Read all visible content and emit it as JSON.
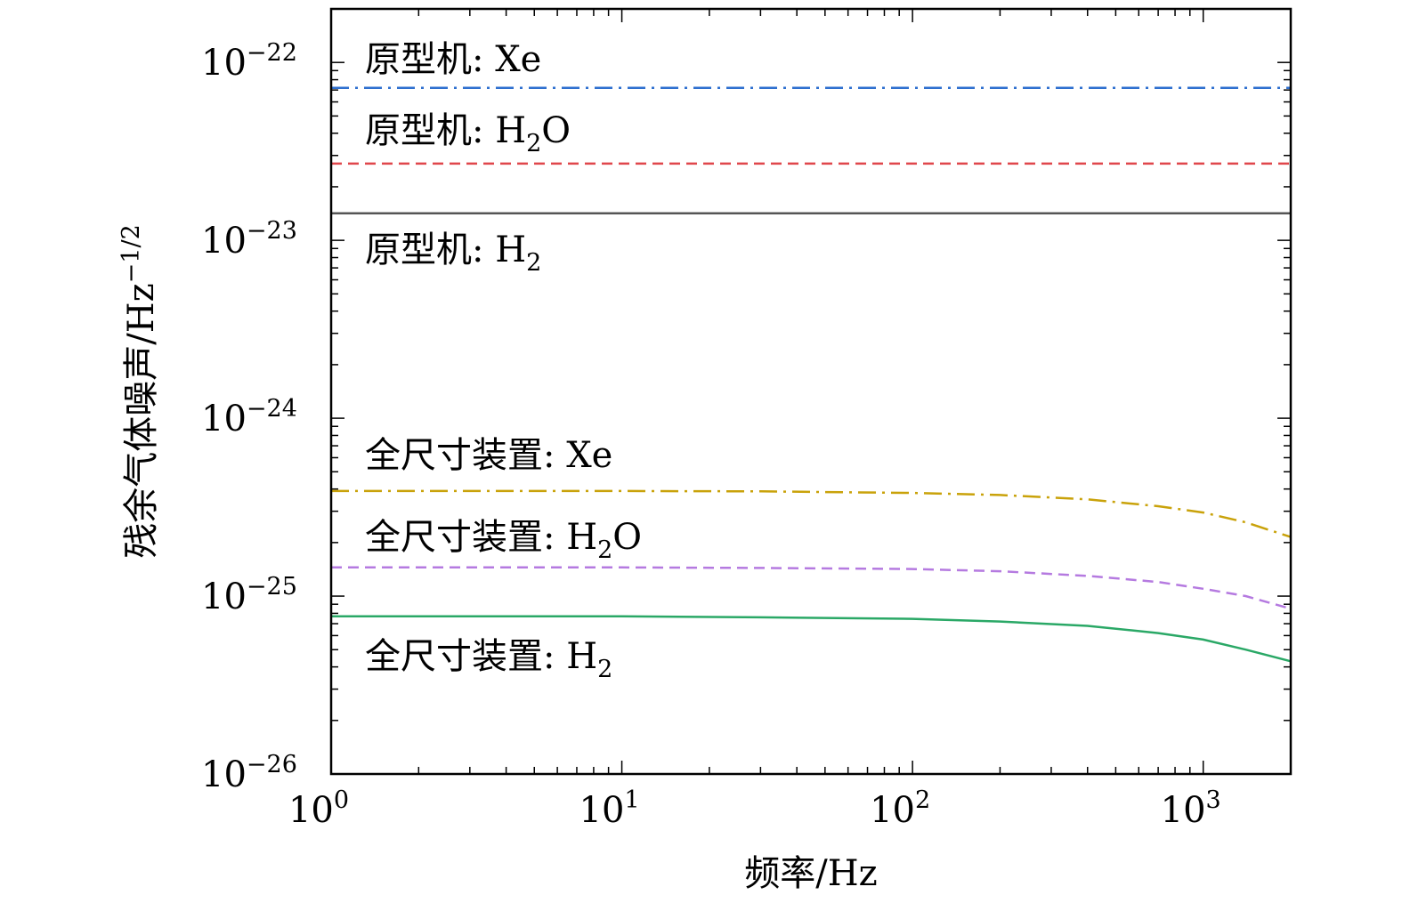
{
  "chart_data": {
    "type": "line",
    "xscale": "log",
    "yscale": "log",
    "xlim": [
      1,
      2000
    ],
    "ylim": [
      1e-26,
      2e-22
    ],
    "grid": false,
    "xlabel": "频率/Hz",
    "ylabel": "残余气体噪声/Hz",
    "ylabel_exponent": "−1/2",
    "x_ticks": [
      {
        "base": "10",
        "exp": "0"
      },
      {
        "base": "10",
        "exp": "1"
      },
      {
        "base": "10",
        "exp": "2"
      },
      {
        "base": "10",
        "exp": "3"
      }
    ],
    "y_ticks": [
      {
        "base": "10",
        "exp": "−22"
      },
      {
        "base": "10",
        "exp": "−23"
      },
      {
        "base": "10",
        "exp": "−24"
      },
      {
        "base": "10",
        "exp": "−25"
      },
      {
        "base": "10",
        "exp": "−26"
      }
    ],
    "series": [
      {
        "name": "原型机: Xe",
        "label_base": "原型机: Xe",
        "label_sub": "",
        "label_tail": "",
        "color": "#2e6fcf",
        "dash": "dashdot",
        "x": [
          1,
          10,
          100,
          1000,
          2000
        ],
        "y": [
          7.2e-23,
          7.2e-23,
          7.2e-23,
          7.2e-23,
          7.2e-23
        ]
      },
      {
        "name": "原型机: H2O",
        "label_base": "原型机: H",
        "label_sub": "2",
        "label_tail": "O",
        "color": "#e0474c",
        "dash": "dashed",
        "x": [
          1,
          10,
          100,
          1000,
          2000
        ],
        "y": [
          2.7e-23,
          2.7e-23,
          2.7e-23,
          2.7e-23,
          2.7e-23
        ]
      },
      {
        "name": "原型机: H2",
        "label_base": "原型机: H",
        "label_sub": "2",
        "label_tail": "",
        "color": "#555555",
        "dash": "solid",
        "x": [
          1,
          10,
          100,
          1000,
          2000
        ],
        "y": [
          1.42e-23,
          1.42e-23,
          1.42e-23,
          1.42e-23,
          1.42e-23
        ]
      },
      {
        "name": "全尺寸装置: Xe",
        "label_base": "全尺寸装置: Xe",
        "label_sub": "",
        "label_tail": "",
        "color": "#c9a20a",
        "dash": "dashdot",
        "x": [
          1,
          10,
          30,
          100,
          200,
          400,
          700,
          1000,
          1400,
          2000
        ],
        "y": [
          3.9e-25,
          3.9e-25,
          3.88e-25,
          3.8e-25,
          3.7e-25,
          3.5e-25,
          3.2e-25,
          2.95e-25,
          2.6e-25,
          2.15e-25
        ]
      },
      {
        "name": "全尺寸装置: H2O",
        "label_base": "全尺寸装置: H",
        "label_sub": "2",
        "label_tail": "O",
        "color": "#b57ae0",
        "dash": "dashed",
        "x": [
          1,
          10,
          30,
          100,
          200,
          400,
          700,
          1000,
          1400,
          2000
        ],
        "y": [
          1.45e-25,
          1.45e-25,
          1.44e-25,
          1.42e-25,
          1.38e-25,
          1.3e-25,
          1.2e-25,
          1.1e-25,
          1e-25,
          8.5e-26
        ]
      },
      {
        "name": "全尺寸装置: H2",
        "label_base": "全尺寸装置: H",
        "label_sub": "2",
        "label_tail": "",
        "color": "#2aa866",
        "dash": "solid",
        "x": [
          1,
          10,
          30,
          100,
          200,
          400,
          700,
          1000,
          1400,
          2000
        ],
        "y": [
          7.7e-26,
          7.7e-26,
          7.6e-26,
          7.45e-26,
          7.2e-26,
          6.8e-26,
          6.2e-26,
          5.7e-26,
          5e-26,
          4.3e-26
        ]
      }
    ]
  }
}
